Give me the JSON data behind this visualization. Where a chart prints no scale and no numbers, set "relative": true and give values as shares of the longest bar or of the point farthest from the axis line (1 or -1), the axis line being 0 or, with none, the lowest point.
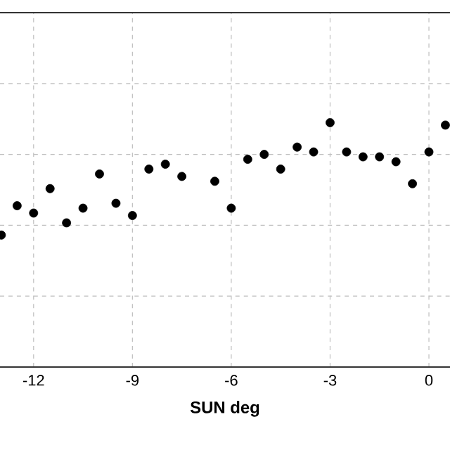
{
  "chart_data": {
    "type": "scatter",
    "xlabel": "SUN deg",
    "relative": true,
    "xlim": [
      -13.02,
      0.64
    ],
    "xticks": [
      -12,
      -9,
      -6,
      -3,
      0
    ],
    "grid": true,
    "marker": "circle",
    "tick_labels": "x",
    "x": [
      -12.98,
      -12.5,
      -12.0,
      -11.5,
      -11.0,
      -10.5,
      -10.0,
      -9.5,
      -9.0,
      -8.5,
      -8.0,
      -7.5,
      -6.5,
      -6.0,
      -5.5,
      -5.0,
      -4.5,
      -4.0,
      -3.5,
      -3.0,
      -2.5,
      -2.0,
      -1.5,
      -1.0,
      -0.5,
      0.0,
      0.5
    ],
    "series": [
      {
        "color": "#000000",
        "values": [
          0.54,
          0.66,
          0.63,
          0.73,
          0.59,
          0.65,
          0.79,
          0.67,
          0.62,
          0.81,
          0.83,
          0.78,
          0.76,
          0.65,
          0.85,
          0.87,
          0.81,
          0.9,
          0.88,
          1,
          0.88,
          0.86,
          0.86,
          0.84,
          0.75,
          0.88,
          0.99
        ]
      }
    ]
  }
}
